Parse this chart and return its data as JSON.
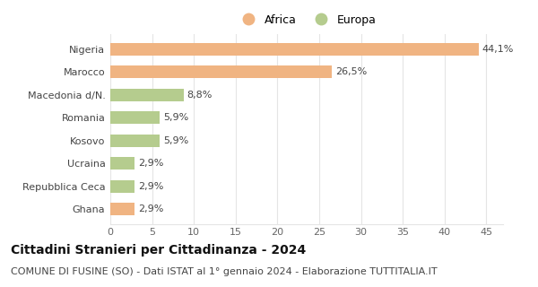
{
  "categories": [
    "Nigeria",
    "Marocco",
    "Macedonia d/N.",
    "Romania",
    "Kosovo",
    "Ucraina",
    "Repubblica Ceca",
    "Ghana"
  ],
  "values": [
    44.1,
    26.5,
    8.8,
    5.9,
    5.9,
    2.9,
    2.9,
    2.9
  ],
  "labels": [
    "44,1%",
    "26,5%",
    "8,8%",
    "5,9%",
    "5,9%",
    "2,9%",
    "2,9%",
    "2,9%"
  ],
  "colors": [
    "#f0b482",
    "#f0b482",
    "#b5cc8e",
    "#b5cc8e",
    "#b5cc8e",
    "#b5cc8e",
    "#b5cc8e",
    "#f0b482"
  ],
  "legend": [
    {
      "label": "Africa",
      "color": "#f0b482"
    },
    {
      "label": "Europa",
      "color": "#b5cc8e"
    }
  ],
  "xlim": [
    0,
    47
  ],
  "xticks": [
    0,
    5,
    10,
    15,
    20,
    25,
    30,
    35,
    40,
    45
  ],
  "title": "Cittadini Stranieri per Cittadinanza - 2024",
  "subtitle": "COMUNE DI FUSINE (SO) - Dati ISTAT al 1° gennaio 2024 - Elaborazione TUTTITALIA.IT",
  "title_fontsize": 10,
  "subtitle_fontsize": 8,
  "label_fontsize": 8,
  "ytick_fontsize": 8,
  "xtick_fontsize": 8,
  "background_color": "#ffffff",
  "grid_color": "#e5e5e5"
}
